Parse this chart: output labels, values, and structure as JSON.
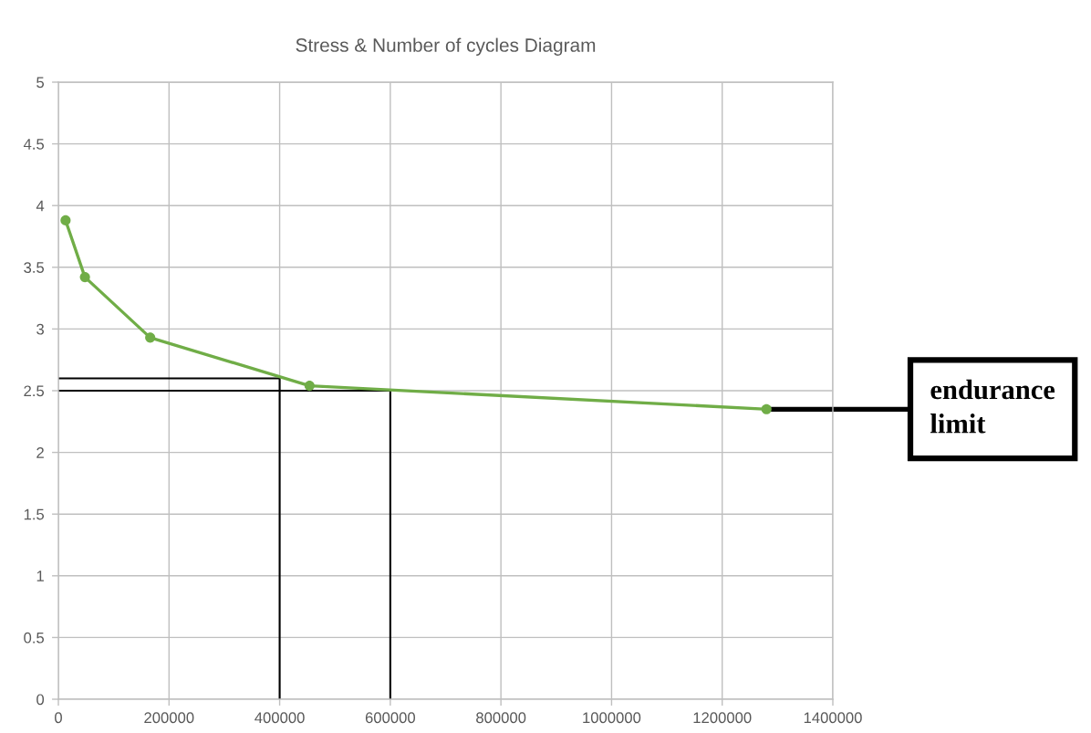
{
  "chart_data": {
    "type": "line",
    "title": "Stress & Number of cycles Diagram",
    "xlim": [
      0,
      1400000
    ],
    "xticks": [
      0,
      200000,
      400000,
      600000,
      800000,
      1000000,
      1200000,
      1400000
    ],
    "ylim": [
      0,
      5
    ],
    "yticks": [
      0,
      0.5,
      1,
      1.5,
      2,
      2.5,
      3,
      3.5,
      4,
      4.5,
      5
    ],
    "grid": true,
    "marker": "circle",
    "line_style": "solid",
    "series": [
      {
        "x": [
          13000,
          48000,
          166000,
          454000,
          1280000
        ],
        "values": [
          3.88,
          3.42,
          2.93,
          2.54,
          2.35
        ],
        "color": "#70ad47"
      },
      {
        "x": [
          0,
          400000,
          400000
        ],
        "values": [
          2.6,
          2.6,
          0
        ],
        "color": "#000000",
        "marker": "none"
      },
      {
        "x": [
          0,
          600000,
          600000
        ],
        "values": [
          2.5,
          2.5,
          0
        ],
        "color": "#000000",
        "marker": "none"
      }
    ],
    "annotations": [
      {
        "text": "endurance\nlimit",
        "x": 1280000,
        "y": 2.35
      }
    ]
  }
}
